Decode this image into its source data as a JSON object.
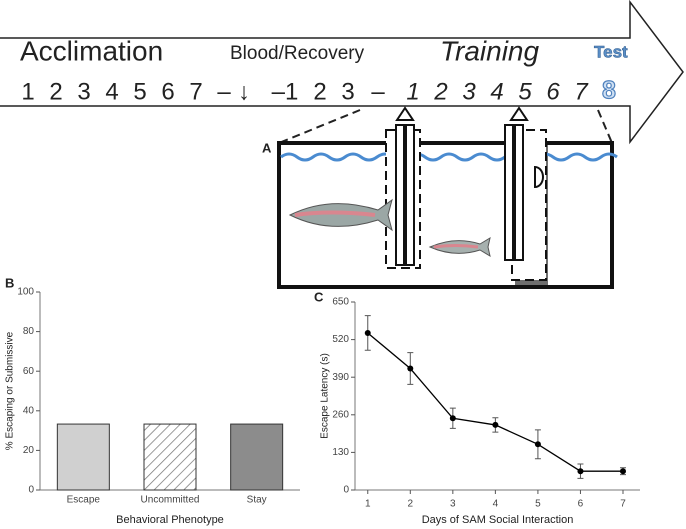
{
  "timeline": {
    "phases": [
      "Acclimation",
      "Blood/Recovery",
      "Training",
      "Test"
    ],
    "days": [
      "1",
      "2",
      "3",
      "4",
      "5",
      "6",
      "7",
      "–",
      "↓",
      "–1",
      "2",
      "3",
      "–",
      "1",
      "2",
      "3",
      "4",
      "5",
      "6",
      "7"
    ],
    "test_day": "8"
  },
  "panel_a": {
    "label": "A"
  },
  "chart_data": [
    {
      "type": "bar",
      "label": "B",
      "xlabel": "Behavioral Phenotype",
      "ylabel": "% Escaping or Submissive",
      "categories": [
        "Escape",
        "Uncommitted",
        "Stay"
      ],
      "values": [
        33.3,
        33.3,
        33.3
      ],
      "colors": [
        "#d0d0d0",
        "#ffffff",
        "#8c8c8c"
      ],
      "hatch": [
        false,
        true,
        false
      ],
      "ylim": [
        0,
        100
      ],
      "yticks": [
        0,
        20,
        40,
        60,
        80,
        100
      ]
    },
    {
      "type": "line",
      "label": "C",
      "xlabel": "Days of SAM Social Interaction",
      "ylabel": "Escape Latency (s)",
      "x": [
        1,
        2,
        3,
        4,
        5,
        6,
        7
      ],
      "values": [
        543,
        420,
        248,
        225,
        158,
        65,
        65
      ],
      "errors": [
        60,
        55,
        35,
        25,
        50,
        25,
        12
      ],
      "color": "#000000",
      "xlim": [
        0.7,
        7.4
      ],
      "xticks": [
        1,
        2,
        3,
        4,
        5,
        6,
        7
      ],
      "ylim": [
        0,
        650
      ],
      "yticks": [
        0,
        130,
        260,
        390,
        520,
        650
      ]
    }
  ]
}
